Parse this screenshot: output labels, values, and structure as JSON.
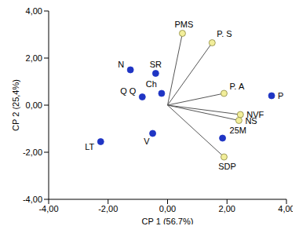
{
  "chart_data": {
    "type": "scatter",
    "xlabel": "CP 1 (56,7%)",
    "ylabel": "CP 2 (25,4%)",
    "xlim": [
      -4,
      4
    ],
    "ylim": [
      -4,
      4
    ],
    "xticks": [
      {
        "value": -4,
        "label": "-4,00"
      },
      {
        "value": -2,
        "label": "-2,00"
      },
      {
        "value": 0,
        "label": "0,00"
      },
      {
        "value": 2,
        "label": "2,00"
      },
      {
        "value": 4,
        "label": "4,00"
      }
    ],
    "yticks": [
      {
        "value": -4,
        "label": "-4,00"
      },
      {
        "value": -2,
        "label": "-2,00"
      },
      {
        "value": 0,
        "label": "0,00"
      },
      {
        "value": 2,
        "label": "2,00"
      },
      {
        "value": 4,
        "label": "4,00"
      }
    ],
    "grid": false,
    "series": [
      {
        "type": "scatter",
        "color": "#1f35c4",
        "marker": "circle",
        "labels": [
          "N",
          "SR",
          "Q Q",
          "Ch",
          "LT",
          "V",
          "25M",
          "P"
        ],
        "x": [
          -1.25,
          -0.4,
          -0.85,
          -0.2,
          -2.25,
          -0.5,
          1.85,
          3.5
        ],
        "y": [
          1.5,
          1.35,
          0.35,
          0.5,
          -1.55,
          -1.2,
          -1.4,
          0.4
        ]
      },
      {
        "type": "vector",
        "color": "#f2ee9a",
        "marker": "circle",
        "labels": [
          "PMS",
          "P. S",
          "P. A",
          "NVF",
          "NS",
          "SDP"
        ],
        "x": [
          0.5,
          1.5,
          1.9,
          2.45,
          2.4,
          1.9
        ],
        "y": [
          3.05,
          2.65,
          0.5,
          -0.4,
          -0.65,
          -2.2
        ]
      }
    ]
  }
}
